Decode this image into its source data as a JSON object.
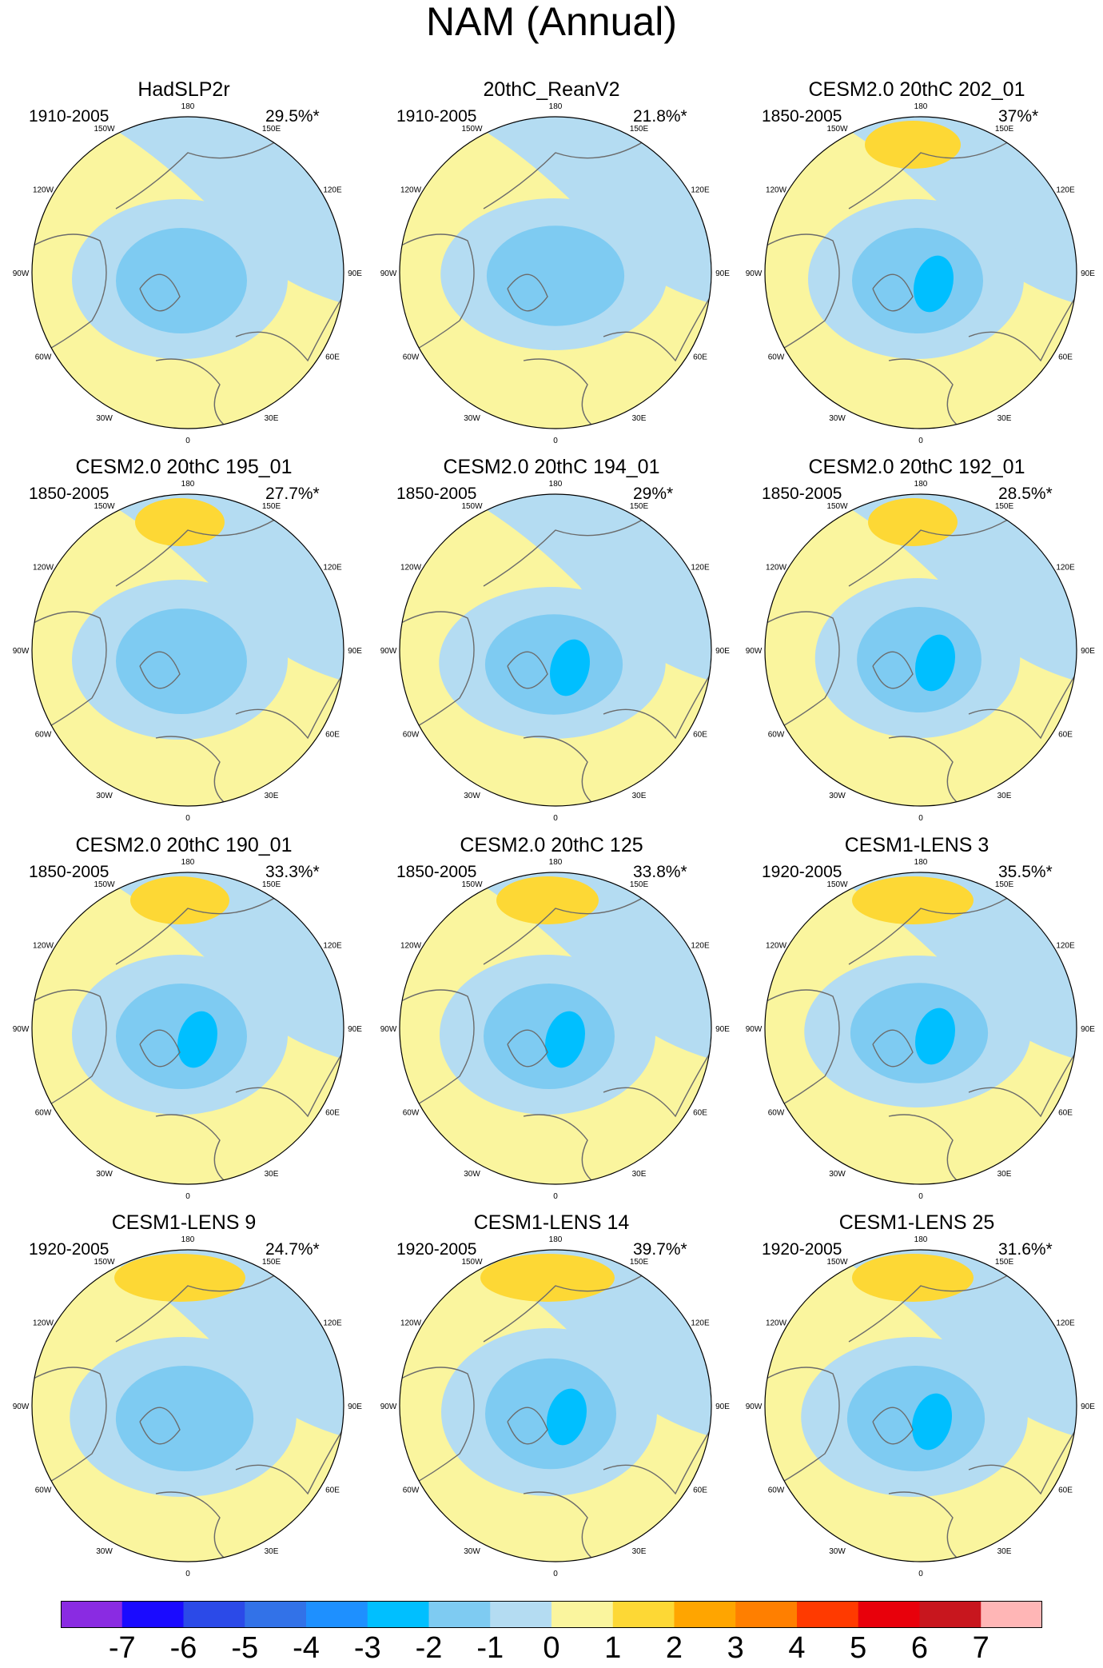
{
  "title": "NAM (Annual)",
  "panels": [
    {
      "title": "HadSLP2r",
      "period": "1910-2005",
      "percent": "29.5%*"
    },
    {
      "title": "20thC_ReanV2",
      "period": "1910-2005",
      "percent": "21.8%*"
    },
    {
      "title": "CESM2.0 20thC 202_01",
      "period": "1850-2005",
      "percent": "37%*"
    },
    {
      "title": "CESM2.0 20thC 195_01",
      "period": "1850-2005",
      "percent": "27.7%*"
    },
    {
      "title": "CESM2.0 20thC 194_01",
      "period": "1850-2005",
      "percent": "29%*"
    },
    {
      "title": "CESM2.0 20thC 192_01",
      "period": "1850-2005",
      "percent": "28.5%*"
    },
    {
      "title": "CESM2.0 20thC 190_01",
      "period": "1850-2005",
      "percent": "33.3%*"
    },
    {
      "title": "CESM2.0 20thC 125",
      "period": "1850-2005",
      "percent": "33.8%*"
    },
    {
      "title": "CESM1-LENS 3",
      "period": "1920-2005",
      "percent": "35.5%*"
    },
    {
      "title": "CESM1-LENS 9",
      "period": "1920-2005",
      "percent": "24.7%*"
    },
    {
      "title": "CESM1-LENS 14",
      "period": "1920-2005",
      "percent": "39.7%*"
    },
    {
      "title": "CESM1-LENS 25",
      "period": "1920-2005",
      "percent": "31.6%*"
    }
  ],
  "longitude_labels": [
    "180",
    "150E",
    "120E",
    "90E",
    "60E",
    "30E",
    "0",
    "30W",
    "60W",
    "90W",
    "120W",
    "150W"
  ],
  "colorbar": {
    "labels": [
      "-7",
      "-6",
      "-5",
      "-4",
      "-3",
      "-2",
      "-1",
      "0",
      "1",
      "2",
      "3",
      "4",
      "5",
      "6",
      "7"
    ],
    "colors": [
      "#8a2be2",
      "#1a0bff",
      "#2b4ae8",
      "#3272e8",
      "#1e90ff",
      "#00bfff",
      "#7ecbf2",
      "#b4dcf2",
      "#faf59e",
      "#fdd835",
      "#ffa500",
      "#ff7f00",
      "#ff3a00",
      "#e8000b",
      "#c8161e",
      "#ffb6b6"
    ]
  },
  "palette": {
    "yellow": "#faf59e",
    "light_blue": "#b4dcf2",
    "blue2": "#7ecbf2",
    "blue3": "#00bfff",
    "orange1": "#fdd835",
    "orange2": "#ffa500",
    "land": "#6b6b6b"
  }
}
